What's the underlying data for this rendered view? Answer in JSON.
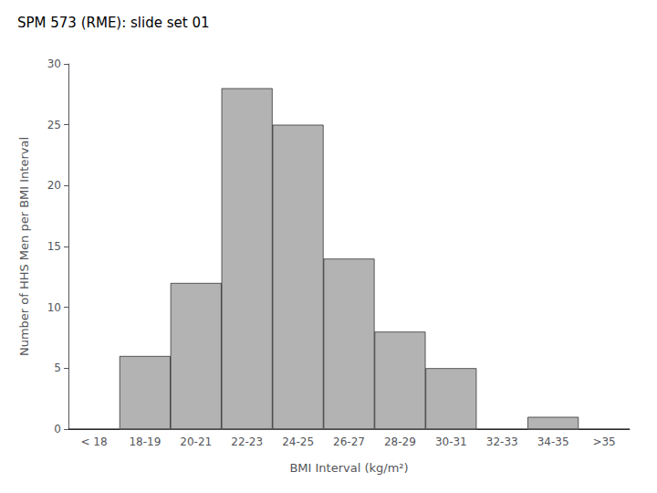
{
  "chart_data": {
    "type": "bar",
    "title": "SPM 573 (RME): slide set 01",
    "xlabel": "BMI Interval (kg/m²)",
    "ylabel": "Number of HHS Men per BMI Interval",
    "categories": [
      "< 18",
      "18-19",
      "20-21",
      "22-23",
      "24-25",
      "26-27",
      "28-29",
      "30-31",
      "32-33",
      "34-35",
      ">35"
    ],
    "values": [
      0,
      6,
      12,
      28,
      25,
      14,
      8,
      5,
      0,
      1,
      0
    ],
    "color": "#b3b3b3",
    "ylim": [
      0,
      30
    ],
    "yticks": [
      0,
      5,
      10,
      15,
      20,
      25,
      30
    ],
    "grid": false
  }
}
